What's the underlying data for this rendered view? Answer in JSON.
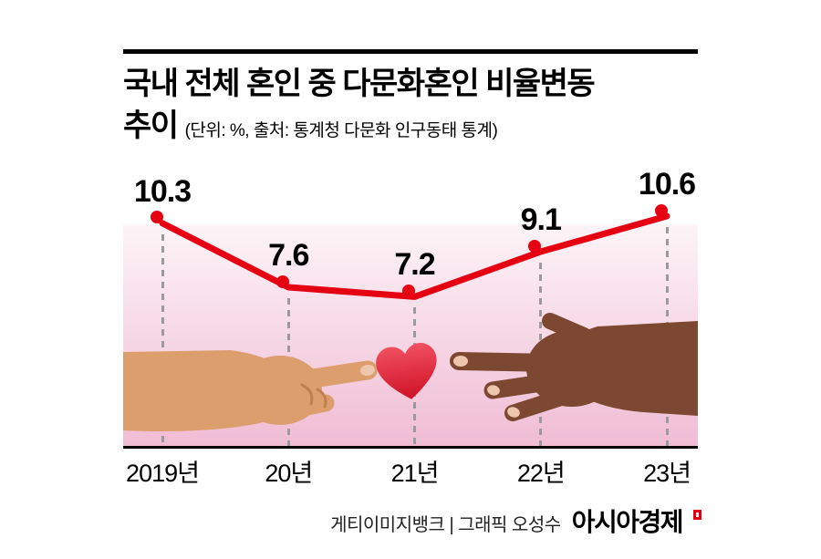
{
  "header": {
    "title_line1": "국내 전체 혼인 중 다문화혼인 비율변동",
    "title_line2": "추이",
    "subtitle": "(단위: %, 출처: 통계청 다문화 인구동태 통계)"
  },
  "chart_data": {
    "type": "line",
    "title": "국내 전체 혼인 중 다문화혼인 비율변동 추이",
    "unit_source_note": "(단위: %, 출처: 통계청 다문화 인구동태 통계)",
    "unit": "%",
    "categories": [
      "2019년",
      "20년",
      "21년",
      "22년",
      "23년"
    ],
    "values": [
      10.3,
      7.6,
      7.2,
      9.1,
      10.6
    ],
    "value_labels_shown": true,
    "legend": false,
    "grid": "dashed vertical guide per data point down to x-axis",
    "marker": "white circle with thick red ring",
    "background": "pink gradient band with two hands reaching toward a heart"
  },
  "footer": {
    "credit": "게티이미지뱅크 | 그래픽 오성수",
    "brand": "아시아경제"
  },
  "colors": {
    "line": "#e50012",
    "heart": "#cf1126",
    "heart_light": "#f05060",
    "hand_left": "#dd9e6e",
    "hand_right": "#7c4832",
    "band_top": "#fdf4f7",
    "band_bottom": "#f0bcd4"
  }
}
